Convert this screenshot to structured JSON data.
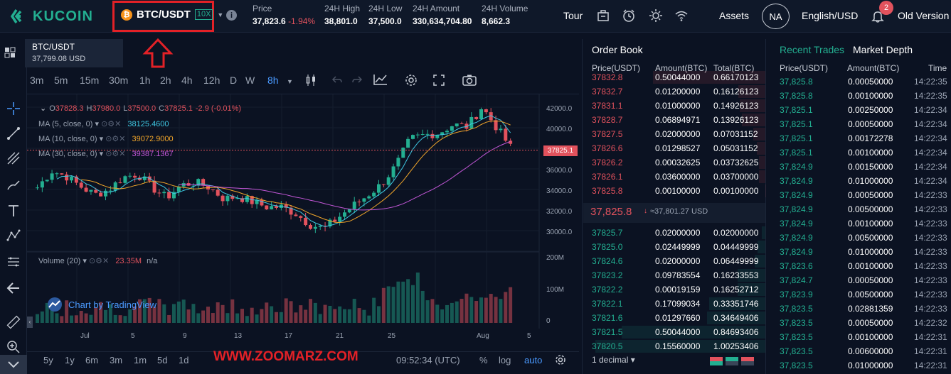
{
  "header": {
    "logo_text": "KUCOIN",
    "pair": "BTC/USDT",
    "coin_symbol": "₿",
    "leverage": "10X",
    "info_icon": "i",
    "stats": [
      {
        "label": "Price",
        "value": "37,823.6",
        "change": "-1.94%"
      },
      {
        "label": "24H High",
        "value": "38,801.0"
      },
      {
        "label": "24H Low",
        "value": "37,500.0"
      },
      {
        "label": "24H Amount",
        "value": "330,634,704.80"
      },
      {
        "label": "24H Volume",
        "value": "8,662.3"
      }
    ],
    "tour": "Tour",
    "assets": "Assets",
    "avatar": "NA",
    "language": "English/USD",
    "notifications": "2",
    "old_version": "Old Version"
  },
  "chart": {
    "pair_tag": "BTC/USDT",
    "pair_price": "37,799.08 USD",
    "timeframes": [
      "1m",
      "3m",
      "5m",
      "15m",
      "30m",
      "1h",
      "2h",
      "4h",
      "12h",
      "D",
      "W",
      "8h"
    ],
    "active_timeframe": "8h",
    "ohlc": {
      "o": "37828.3",
      "h": "37980.0",
      "l": "37500.0",
      "c": "37825.1",
      "chg": "-2.9 (-0.01%)"
    },
    "ma5_label": "MA (5, close, 0)",
    "ma5_value": "38125.4600",
    "ma10_label": "MA (10, close, 0)",
    "ma10_value": "39072.9000",
    "ma30_label": "MA (30, close, 0)",
    "ma30_value": "39387.1367",
    "volume_label": "Volume (20)",
    "volume_value": "23.35M",
    "volume_na": "n/a",
    "price_marker": "37825.1",
    "y_ticks": [
      "42000.0",
      "40000.0",
      "38000.0",
      "36000.0",
      "34000.0",
      "32000.0",
      "30000.0"
    ],
    "vol_ticks": [
      "200M",
      "100M",
      "0"
    ],
    "x_ticks": [
      "Jul",
      "5",
      "9",
      "13",
      "17",
      "21",
      "25",
      "Aug",
      "5"
    ],
    "tradingview": "Chart by TradingView",
    "bottom_ranges": [
      "5y",
      "1y",
      "6m",
      "3m",
      "1m",
      "5d",
      "1d"
    ],
    "time": "09:52:34 (UTC)",
    "pct": "%",
    "log": "log",
    "auto": "auto"
  },
  "watermark": "WWW.ZOOMARZ.COM",
  "orderbook": {
    "title": "Order Book",
    "headers": [
      "Price(USDT)",
      "Amount(BTC)",
      "Total(BTC)"
    ],
    "asks": [
      [
        "37832.8",
        "0.50044000",
        "0.66170123"
      ],
      [
        "37832.7",
        "0.01200000",
        "0.16126123"
      ],
      [
        "37831.1",
        "0.01000000",
        "0.14926123"
      ],
      [
        "37828.7",
        "0.06894971",
        "0.13926123"
      ],
      [
        "37827.5",
        "0.02000000",
        "0.07031152"
      ],
      [
        "37826.6",
        "0.01298527",
        "0.05031152"
      ],
      [
        "37826.2",
        "0.00032625",
        "0.03732625"
      ],
      [
        "37826.1",
        "0.03600000",
        "0.03700000"
      ],
      [
        "37825.8",
        "0.00100000",
        "0.00100000"
      ]
    ],
    "mid_price": "37,825.8",
    "mid_usd": "≈37,801.27 USD",
    "bids": [
      [
        "37825.7",
        "0.02000000",
        "0.02000000"
      ],
      [
        "37825.0",
        "0.02449999",
        "0.04449999"
      ],
      [
        "37824.6",
        "0.02000000",
        "0.06449999"
      ],
      [
        "37823.2",
        "0.09783554",
        "0.16233553"
      ],
      [
        "37822.2",
        "0.00019159",
        "0.16252712"
      ],
      [
        "37822.1",
        "0.17099034",
        "0.33351746"
      ],
      [
        "37821.6",
        "0.01297660",
        "0.34649406"
      ],
      [
        "37821.5",
        "0.50044000",
        "0.84693406"
      ],
      [
        "37820.5",
        "0.15560000",
        "1.00253406"
      ]
    ],
    "decimal": "1 decimal"
  },
  "trades": {
    "tab1": "Recent Trades",
    "tab2": "Market Depth",
    "headers": [
      "Price(USDT)",
      "Amount(BTC)",
      "Time"
    ],
    "rows": [
      [
        "37,825.8",
        "0.00050000",
        "14:22:35"
      ],
      [
        "37,825.8",
        "0.00100000",
        "14:22:35"
      ],
      [
        "37,825.1",
        "0.00250000",
        "14:22:34"
      ],
      [
        "37,825.1",
        "0.00050000",
        "14:22:34"
      ],
      [
        "37,825.1",
        "0.00172278",
        "14:22:34"
      ],
      [
        "37,825.1",
        "0.00100000",
        "14:22:34"
      ],
      [
        "37,824.9",
        "0.00150000",
        "14:22:34"
      ],
      [
        "37,824.9",
        "0.01000000",
        "14:22:34"
      ],
      [
        "37,824.9",
        "0.00050000",
        "14:22:33"
      ],
      [
        "37,824.9",
        "0.00500000",
        "14:22:33"
      ],
      [
        "37,824.9",
        "0.00100000",
        "14:22:33"
      ],
      [
        "37,824.9",
        "0.00500000",
        "14:22:33"
      ],
      [
        "37,824.9",
        "0.01000000",
        "14:22:33"
      ],
      [
        "37,823.6",
        "0.00100000",
        "14:22:33"
      ],
      [
        "37,824.7",
        "0.00050000",
        "14:22:33"
      ],
      [
        "37,823.9",
        "0.00500000",
        "14:22:33"
      ],
      [
        "37,823.5",
        "0.02881359",
        "14:22:33"
      ],
      [
        "37,823.5",
        "0.00050000",
        "14:22:32"
      ],
      [
        "37,823.5",
        "0.00100000",
        "14:22:31"
      ],
      [
        "37,823.5",
        "0.00600000",
        "14:22:31"
      ],
      [
        "37,823.5",
        "0.01000000",
        "14:22:31"
      ]
    ]
  },
  "colors": {
    "green": "#23af91",
    "red": "#e2525d",
    "bg": "#0b1222",
    "accent": "#4a9aff"
  }
}
